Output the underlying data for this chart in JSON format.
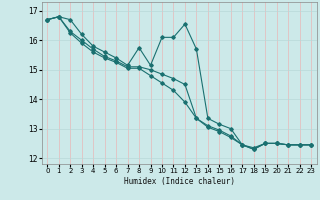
{
  "xlabel": "Humidex (Indice chaleur)",
  "background_color": "#cce9e9",
  "grid_color_vertical": "#e8b8b8",
  "grid_color_horizontal": "#b8d8d8",
  "line_color": "#1a7070",
  "xlim": [
    -0.5,
    23.5
  ],
  "ylim": [
    11.8,
    17.3
  ],
  "yticks": [
    12,
    13,
    14,
    15,
    16,
    17
  ],
  "xticks": [
    0,
    1,
    2,
    3,
    4,
    5,
    6,
    7,
    8,
    9,
    10,
    11,
    12,
    13,
    14,
    15,
    16,
    17,
    18,
    19,
    20,
    21,
    22,
    23
  ],
  "lines": [
    {
      "x": [
        0,
        1,
        2,
        3,
        4,
        5,
        6,
        7,
        8,
        9,
        10,
        11,
        12,
        13,
        14,
        15,
        16,
        17,
        18,
        19,
        20,
        21,
        22,
        23
      ],
      "y": [
        16.7,
        16.8,
        16.7,
        16.2,
        15.8,
        15.6,
        15.4,
        15.15,
        15.75,
        15.15,
        16.1,
        16.1,
        16.55,
        15.7,
        13.35,
        13.15,
        13.0,
        12.45,
        12.35,
        12.5,
        12.5,
        12.45,
        12.45,
        12.45
      ]
    },
    {
      "x": [
        0,
        1,
        2,
        3,
        4,
        5,
        6,
        7,
        8,
        9,
        10,
        11,
        12,
        13,
        14,
        15,
        16,
        17,
        18,
        19,
        20,
        21,
        22,
        23
      ],
      "y": [
        16.7,
        16.8,
        16.3,
        16.0,
        15.7,
        15.45,
        15.3,
        15.1,
        15.1,
        15.0,
        14.85,
        14.7,
        14.5,
        13.35,
        13.1,
        12.95,
        12.75,
        12.45,
        12.3,
        12.5,
        12.5,
        12.45,
        12.45,
        12.45
      ]
    },
    {
      "x": [
        0,
        1,
        2,
        3,
        4,
        5,
        6,
        7,
        8,
        9,
        10,
        11,
        12,
        13,
        14,
        15,
        16,
        17,
        18,
        19,
        20,
        21,
        22,
        23
      ],
      "y": [
        16.7,
        16.8,
        16.25,
        15.9,
        15.6,
        15.4,
        15.25,
        15.05,
        15.05,
        14.8,
        14.55,
        14.3,
        13.9,
        13.35,
        13.05,
        12.9,
        12.7,
        12.45,
        12.3,
        12.5,
        12.5,
        12.45,
        12.45,
        12.45
      ]
    }
  ]
}
